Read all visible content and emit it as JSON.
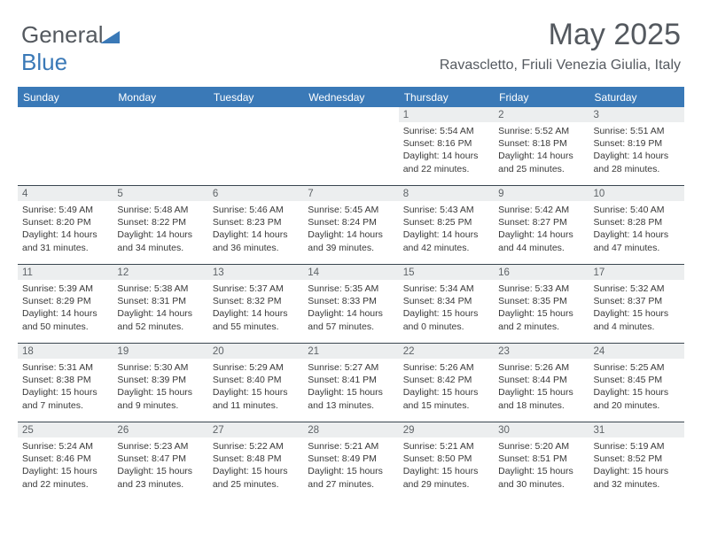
{
  "logo": {
    "text_general": "General",
    "text_blue": "Blue",
    "triangle_color": "#3a79b7"
  },
  "header": {
    "month_title": "May 2025",
    "location": "Ravascletto, Friuli Venezia Giulia, Italy"
  },
  "colors": {
    "header_bar": "#3a79b7",
    "header_text": "#ffffff",
    "daynum_bg": "#eceeef",
    "body_text": "#393939",
    "rule": "#3a4650"
  },
  "day_headers": [
    "Sunday",
    "Monday",
    "Tuesday",
    "Wednesday",
    "Thursday",
    "Friday",
    "Saturday"
  ],
  "weeks": [
    [
      null,
      null,
      null,
      null,
      {
        "n": "1",
        "sr": "Sunrise: 5:54 AM",
        "ss": "Sunset: 8:16 PM",
        "d1": "Daylight: 14 hours",
        "d2": "and 22 minutes."
      },
      {
        "n": "2",
        "sr": "Sunrise: 5:52 AM",
        "ss": "Sunset: 8:18 PM",
        "d1": "Daylight: 14 hours",
        "d2": "and 25 minutes."
      },
      {
        "n": "3",
        "sr": "Sunrise: 5:51 AM",
        "ss": "Sunset: 8:19 PM",
        "d1": "Daylight: 14 hours",
        "d2": "and 28 minutes."
      }
    ],
    [
      {
        "n": "4",
        "sr": "Sunrise: 5:49 AM",
        "ss": "Sunset: 8:20 PM",
        "d1": "Daylight: 14 hours",
        "d2": "and 31 minutes."
      },
      {
        "n": "5",
        "sr": "Sunrise: 5:48 AM",
        "ss": "Sunset: 8:22 PM",
        "d1": "Daylight: 14 hours",
        "d2": "and 34 minutes."
      },
      {
        "n": "6",
        "sr": "Sunrise: 5:46 AM",
        "ss": "Sunset: 8:23 PM",
        "d1": "Daylight: 14 hours",
        "d2": "and 36 minutes."
      },
      {
        "n": "7",
        "sr": "Sunrise: 5:45 AM",
        "ss": "Sunset: 8:24 PM",
        "d1": "Daylight: 14 hours",
        "d2": "and 39 minutes."
      },
      {
        "n": "8",
        "sr": "Sunrise: 5:43 AM",
        "ss": "Sunset: 8:25 PM",
        "d1": "Daylight: 14 hours",
        "d2": "and 42 minutes."
      },
      {
        "n": "9",
        "sr": "Sunrise: 5:42 AM",
        "ss": "Sunset: 8:27 PM",
        "d1": "Daylight: 14 hours",
        "d2": "and 44 minutes."
      },
      {
        "n": "10",
        "sr": "Sunrise: 5:40 AM",
        "ss": "Sunset: 8:28 PM",
        "d1": "Daylight: 14 hours",
        "d2": "and 47 minutes."
      }
    ],
    [
      {
        "n": "11",
        "sr": "Sunrise: 5:39 AM",
        "ss": "Sunset: 8:29 PM",
        "d1": "Daylight: 14 hours",
        "d2": "and 50 minutes."
      },
      {
        "n": "12",
        "sr": "Sunrise: 5:38 AM",
        "ss": "Sunset: 8:31 PM",
        "d1": "Daylight: 14 hours",
        "d2": "and 52 minutes."
      },
      {
        "n": "13",
        "sr": "Sunrise: 5:37 AM",
        "ss": "Sunset: 8:32 PM",
        "d1": "Daylight: 14 hours",
        "d2": "and 55 minutes."
      },
      {
        "n": "14",
        "sr": "Sunrise: 5:35 AM",
        "ss": "Sunset: 8:33 PM",
        "d1": "Daylight: 14 hours",
        "d2": "and 57 minutes."
      },
      {
        "n": "15",
        "sr": "Sunrise: 5:34 AM",
        "ss": "Sunset: 8:34 PM",
        "d1": "Daylight: 15 hours",
        "d2": "and 0 minutes."
      },
      {
        "n": "16",
        "sr": "Sunrise: 5:33 AM",
        "ss": "Sunset: 8:35 PM",
        "d1": "Daylight: 15 hours",
        "d2": "and 2 minutes."
      },
      {
        "n": "17",
        "sr": "Sunrise: 5:32 AM",
        "ss": "Sunset: 8:37 PM",
        "d1": "Daylight: 15 hours",
        "d2": "and 4 minutes."
      }
    ],
    [
      {
        "n": "18",
        "sr": "Sunrise: 5:31 AM",
        "ss": "Sunset: 8:38 PM",
        "d1": "Daylight: 15 hours",
        "d2": "and 7 minutes."
      },
      {
        "n": "19",
        "sr": "Sunrise: 5:30 AM",
        "ss": "Sunset: 8:39 PM",
        "d1": "Daylight: 15 hours",
        "d2": "and 9 minutes."
      },
      {
        "n": "20",
        "sr": "Sunrise: 5:29 AM",
        "ss": "Sunset: 8:40 PM",
        "d1": "Daylight: 15 hours",
        "d2": "and 11 minutes."
      },
      {
        "n": "21",
        "sr": "Sunrise: 5:27 AM",
        "ss": "Sunset: 8:41 PM",
        "d1": "Daylight: 15 hours",
        "d2": "and 13 minutes."
      },
      {
        "n": "22",
        "sr": "Sunrise: 5:26 AM",
        "ss": "Sunset: 8:42 PM",
        "d1": "Daylight: 15 hours",
        "d2": "and 15 minutes."
      },
      {
        "n": "23",
        "sr": "Sunrise: 5:26 AM",
        "ss": "Sunset: 8:44 PM",
        "d1": "Daylight: 15 hours",
        "d2": "and 18 minutes."
      },
      {
        "n": "24",
        "sr": "Sunrise: 5:25 AM",
        "ss": "Sunset: 8:45 PM",
        "d1": "Daylight: 15 hours",
        "d2": "and 20 minutes."
      }
    ],
    [
      {
        "n": "25",
        "sr": "Sunrise: 5:24 AM",
        "ss": "Sunset: 8:46 PM",
        "d1": "Daylight: 15 hours",
        "d2": "and 22 minutes."
      },
      {
        "n": "26",
        "sr": "Sunrise: 5:23 AM",
        "ss": "Sunset: 8:47 PM",
        "d1": "Daylight: 15 hours",
        "d2": "and 23 minutes."
      },
      {
        "n": "27",
        "sr": "Sunrise: 5:22 AM",
        "ss": "Sunset: 8:48 PM",
        "d1": "Daylight: 15 hours",
        "d2": "and 25 minutes."
      },
      {
        "n": "28",
        "sr": "Sunrise: 5:21 AM",
        "ss": "Sunset: 8:49 PM",
        "d1": "Daylight: 15 hours",
        "d2": "and 27 minutes."
      },
      {
        "n": "29",
        "sr": "Sunrise: 5:21 AM",
        "ss": "Sunset: 8:50 PM",
        "d1": "Daylight: 15 hours",
        "d2": "and 29 minutes."
      },
      {
        "n": "30",
        "sr": "Sunrise: 5:20 AM",
        "ss": "Sunset: 8:51 PM",
        "d1": "Daylight: 15 hours",
        "d2": "and 30 minutes."
      },
      {
        "n": "31",
        "sr": "Sunrise: 5:19 AM",
        "ss": "Sunset: 8:52 PM",
        "d1": "Daylight: 15 hours",
        "d2": "and 32 minutes."
      }
    ]
  ]
}
